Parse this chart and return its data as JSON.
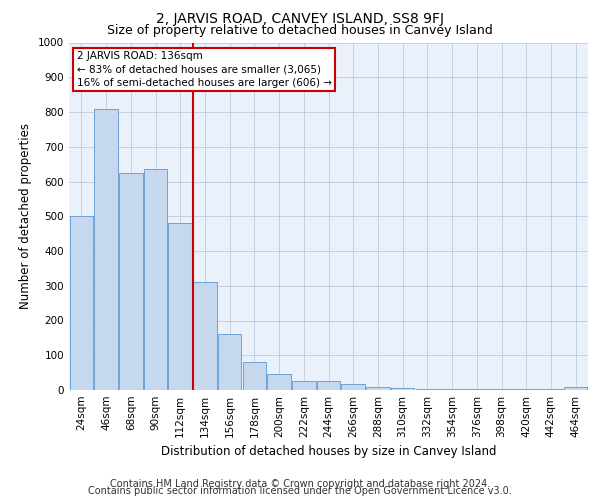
{
  "title": "2, JARVIS ROAD, CANVEY ISLAND, SS8 9FJ",
  "subtitle": "Size of property relative to detached houses in Canvey Island",
  "xlabel": "Distribution of detached houses by size in Canvey Island",
  "ylabel": "Number of detached properties",
  "categories": [
    "24sqm",
    "46sqm",
    "68sqm",
    "90sqm",
    "112sqm",
    "134sqm",
    "156sqm",
    "178sqm",
    "200sqm",
    "222sqm",
    "244sqm",
    "266sqm",
    "288sqm",
    "310sqm",
    "332sqm",
    "354sqm",
    "376sqm",
    "398sqm",
    "420sqm",
    "442sqm",
    "464sqm"
  ],
  "values": [
    500,
    810,
    625,
    635,
    480,
    310,
    160,
    80,
    45,
    25,
    25,
    18,
    10,
    5,
    3,
    2,
    2,
    2,
    2,
    2,
    10
  ],
  "bar_color": "#c5d8ed",
  "bar_edge_color": "#5b9bd5",
  "vline_x_index": 5,
  "vline_color": "#cc0000",
  "annotation_text": "2 JARVIS ROAD: 136sqm\n← 83% of detached houses are smaller (3,065)\n16% of semi-detached houses are larger (606) →",
  "annotation_box_color": "#ffffff",
  "annotation_box_edge": "#cc0000",
  "ylim": [
    0,
    1000
  ],
  "yticks": [
    0,
    100,
    200,
    300,
    400,
    500,
    600,
    700,
    800,
    900,
    1000
  ],
  "grid_color": "#b0c4de",
  "bg_color": "#eaf1fa",
  "footer_line1": "Contains HM Land Registry data © Crown copyright and database right 2024.",
  "footer_line2": "Contains public sector information licensed under the Open Government Licence v3.0.",
  "title_fontsize": 10,
  "subtitle_fontsize": 9,
  "axis_label_fontsize": 8.5,
  "tick_fontsize": 7.5,
  "footer_fontsize": 7
}
